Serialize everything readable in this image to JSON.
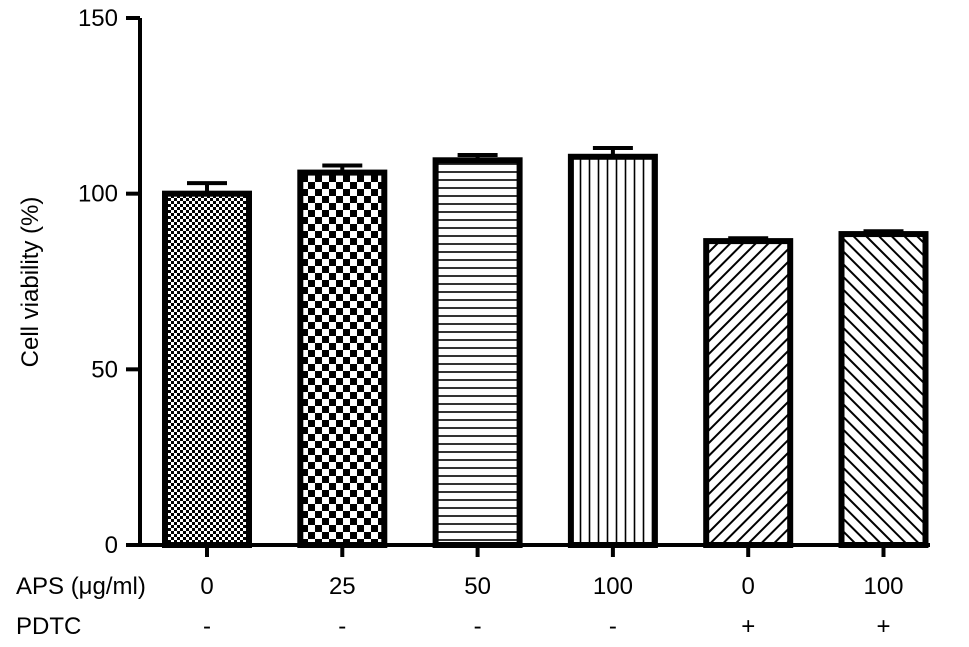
{
  "chart_data": {
    "type": "bar",
    "ylabel": "Cell viability (%)",
    "ylim": [
      0,
      150
    ],
    "yticks": [
      0,
      50,
      100,
      150
    ],
    "row_labels": {
      "aps": "APS (μg/ml)",
      "pdtc": "PDTC"
    },
    "categories": [
      {
        "aps": "0",
        "pdtc": "-"
      },
      {
        "aps": "25",
        "pdtc": "-"
      },
      {
        "aps": "50",
        "pdtc": "-"
      },
      {
        "aps": "100",
        "pdtc": "-"
      },
      {
        "aps": "0",
        "pdtc": "+"
      },
      {
        "aps": "100",
        "pdtc": "+"
      }
    ],
    "values": [
      100,
      106,
      109.5,
      110.5,
      86.5,
      88.5
    ],
    "errors": [
      3,
      2,
      1.5,
      2.5,
      0.8,
      0.8
    ],
    "patterns": [
      "dots",
      "checker",
      "horizontal",
      "vertical",
      "diag-up",
      "diag-down"
    ],
    "colors": {
      "stroke": "#000000",
      "fill": "#ffffff"
    },
    "grid": false,
    "legend": "none"
  }
}
